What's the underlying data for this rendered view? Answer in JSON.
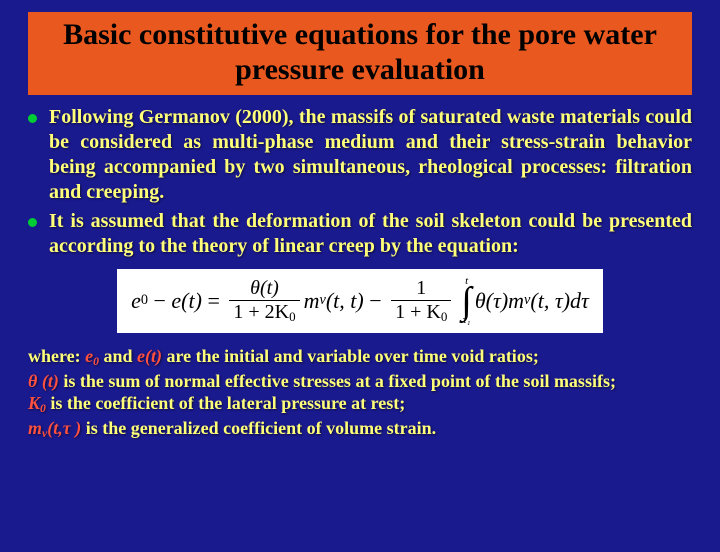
{
  "title": "Basic constitutive equations for the pore water pressure evaluation",
  "bullets": [
    "Following Germanov (2000), the massifs of saturated waste materials could be considered as multi-phase medium and their stress-strain behavior being accompanied by two simultaneous, rheological processes: filtration and creeping.",
    "It is assumed that the deformation of the soil skeleton could be presented according to the theory of linear creep by the equation:"
  ],
  "equation": {
    "lhs_e0": "e",
    "lhs_e0_sub": "0",
    "lhs_et": "e(t)",
    "frac1_num": "θ(t)",
    "frac1_den_pre": "1 + 2K",
    "frac1_den_sub": "0",
    "mv": "m",
    "mv_sub": "v",
    "mv_args1": "(t, t)",
    "frac2_num": "1",
    "frac2_den_pre": "1 + K",
    "frac2_den_sub": "0",
    "int_upper": "t",
    "int_sym": "∫",
    "int_lower": "τ₁",
    "theta_tau": "θ(τ)",
    "mv_args2": "(t, τ)dτ"
  },
  "where": {
    "line1_pre": "where: ",
    "line1_e0": "e",
    "line1_e0_sub": "0",
    "line1_and": " and ",
    "line1_et": "e(t)",
    "line1_post": " are the initial and variable over time void ratios;",
    "line2_sym": "θ (t)",
    "line2_post": " is the sum of normal effective stresses at a fixed point of the soil massifs;",
    "line3_sym": "K",
    "line3_sub": "0",
    "line3_post": " is the coefficient of the lateral pressure at rest;",
    "line4_sym": "m",
    "line4_sub": "v",
    "line4_args_open": "(t,",
    "line4_tau": "τ ",
    "line4_args_close": ")",
    "line4_post": " is the generalized coefficient of volume strain."
  },
  "colors": {
    "background": "#1a1a8f",
    "title_bg": "#e8581f",
    "title_text": "#000000",
    "body_text": "#ffff7a",
    "bullet": "#00cc33",
    "highlight": "#ff5040",
    "equation_bg": "#ffffff"
  }
}
